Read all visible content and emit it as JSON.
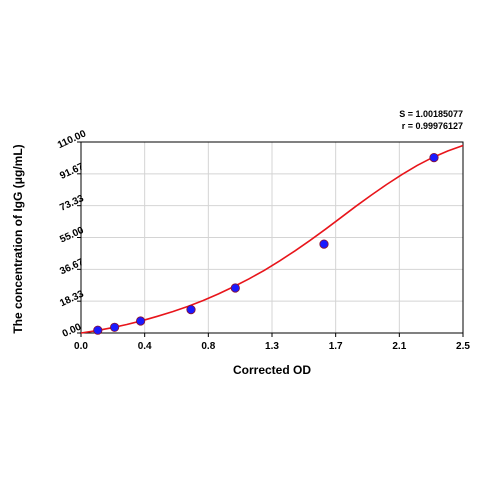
{
  "chart_data": {
    "type": "scatter",
    "xlabel": "Corrected OD",
    "ylabel": "The concentration of IgG (μg/mL)",
    "xlim": [
      0.0,
      2.5
    ],
    "ylim": [
      0.0,
      110.0
    ],
    "x_ticks": [
      "0.0",
      "0.4",
      "0.8",
      "1.3",
      "1.7",
      "2.1",
      "2.5"
    ],
    "y_ticks": [
      "0.00",
      "18.33",
      "36.67",
      "55.00",
      "73.33",
      "91.67",
      "110.00"
    ],
    "grid": true,
    "stats": {
      "s": "S = 1.00185077",
      "r": "r = 0.99976127"
    },
    "series": [
      {
        "kind": "points",
        "color": "#1a1aff",
        "x": [
          0.11,
          0.22,
          0.39,
          0.72,
          1.01,
          1.59,
          2.31
        ],
        "y": [
          1.6,
          3.3,
          6.9,
          13.5,
          25.9,
          51.2,
          101.0
        ]
      },
      {
        "kind": "fit",
        "color": "#e8151b",
        "x": [
          0.0,
          0.1,
          0.2,
          0.3,
          0.4,
          0.5,
          0.6,
          0.7,
          0.8,
          0.9,
          1.0,
          1.1,
          1.2,
          1.3,
          1.4,
          1.5,
          1.6,
          1.7,
          1.8,
          1.9,
          2.0,
          2.1,
          2.2,
          2.3,
          2.4,
          2.5
        ],
        "y": [
          0.0,
          1.3,
          3.0,
          4.9,
          7.1,
          9.6,
          12.3,
          15.3,
          18.7,
          22.5,
          26.7,
          31.2,
          36.1,
          41.5,
          47.3,
          53.4,
          59.8,
          66.4,
          73.0,
          79.4,
          85.5,
          91.2,
          96.5,
          101.0,
          104.8,
          108.0
        ]
      }
    ]
  }
}
